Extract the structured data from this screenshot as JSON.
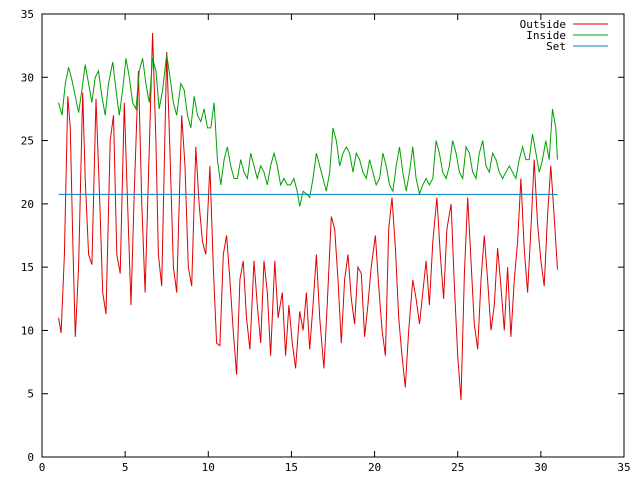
{
  "chart_data": {
    "type": "line",
    "title": "",
    "xlabel": "",
    "ylabel": "",
    "xlim": [
      0,
      35
    ],
    "ylim": [
      0,
      35
    ],
    "xticks": [
      0,
      5,
      10,
      15,
      20,
      25,
      30,
      35
    ],
    "yticks": [
      0,
      5,
      10,
      15,
      20,
      25,
      30,
      35
    ],
    "grid": false,
    "legend_position": "top-right",
    "series": [
      {
        "name": "Outside",
        "color": "#e00000",
        "points": [
          [
            1.0,
            11.0
          ],
          [
            1.15,
            9.8
          ],
          [
            1.35,
            16.0
          ],
          [
            1.55,
            28.5
          ],
          [
            1.7,
            26.0
          ],
          [
            1.85,
            17.0
          ],
          [
            2.0,
            9.5
          ],
          [
            2.2,
            15.0
          ],
          [
            2.45,
            28.8
          ],
          [
            2.6,
            22.0
          ],
          [
            2.8,
            16.0
          ],
          [
            3.0,
            15.2
          ],
          [
            3.25,
            28.3
          ],
          [
            3.45,
            21.0
          ],
          [
            3.65,
            13.0
          ],
          [
            3.85,
            11.3
          ],
          [
            4.1,
            25.0
          ],
          [
            4.3,
            27.0
          ],
          [
            4.5,
            16.0
          ],
          [
            4.7,
            14.5
          ],
          [
            4.95,
            28.0
          ],
          [
            5.15,
            20.0
          ],
          [
            5.35,
            12.0
          ],
          [
            5.55,
            21.0
          ],
          [
            5.8,
            30.5
          ],
          [
            6.0,
            20.0
          ],
          [
            6.2,
            13.0
          ],
          [
            6.4,
            22.0
          ],
          [
            6.65,
            33.5
          ],
          [
            6.85,
            25.0
          ],
          [
            7.0,
            16.0
          ],
          [
            7.2,
            13.5
          ],
          [
            7.5,
            32.0
          ],
          [
            7.7,
            24.0
          ],
          [
            7.9,
            15.0
          ],
          [
            8.1,
            13.0
          ],
          [
            8.4,
            27.0
          ],
          [
            8.6,
            23.0
          ],
          [
            8.8,
            15.0
          ],
          [
            9.0,
            13.5
          ],
          [
            9.25,
            24.5
          ],
          [
            9.45,
            20.0
          ],
          [
            9.65,
            17.0
          ],
          [
            9.85,
            16.0
          ],
          [
            10.1,
            23.0
          ],
          [
            10.3,
            15.0
          ],
          [
            10.5,
            9.0
          ],
          [
            10.7,
            8.8
          ],
          [
            10.9,
            16.0
          ],
          [
            11.1,
            17.5
          ],
          [
            11.3,
            14.0
          ],
          [
            11.5,
            10.0
          ],
          [
            11.7,
            6.5
          ],
          [
            11.9,
            14.0
          ],
          [
            12.1,
            15.5
          ],
          [
            12.3,
            11.0
          ],
          [
            12.5,
            8.5
          ],
          [
            12.75,
            15.5
          ],
          [
            12.95,
            12.0
          ],
          [
            13.15,
            9.0
          ],
          [
            13.35,
            15.5
          ],
          [
            13.55,
            13.0
          ],
          [
            13.75,
            8.0
          ],
          [
            14.0,
            15.5
          ],
          [
            14.2,
            11.0
          ],
          [
            14.45,
            13.0
          ],
          [
            14.65,
            8.0
          ],
          [
            14.85,
            12.0
          ],
          [
            15.05,
            9.0
          ],
          [
            15.25,
            7.0
          ],
          [
            15.5,
            11.5
          ],
          [
            15.7,
            10.0
          ],
          [
            15.9,
            13.0
          ],
          [
            16.1,
            8.5
          ],
          [
            16.3,
            12.0
          ],
          [
            16.5,
            16.0
          ],
          [
            16.7,
            11.0
          ],
          [
            16.95,
            7.0
          ],
          [
            17.15,
            12.0
          ],
          [
            17.4,
            19.0
          ],
          [
            17.6,
            18.0
          ],
          [
            17.8,
            14.0
          ],
          [
            18.0,
            9.0
          ],
          [
            18.2,
            14.0
          ],
          [
            18.4,
            16.0
          ],
          [
            18.6,
            12.5
          ],
          [
            18.8,
            10.5
          ],
          [
            19.0,
            15.0
          ],
          [
            19.2,
            14.5
          ],
          [
            19.4,
            9.5
          ],
          [
            19.6,
            12.0
          ],
          [
            19.8,
            15.0
          ],
          [
            20.05,
            17.5
          ],
          [
            20.25,
            13.5
          ],
          [
            20.45,
            10.0
          ],
          [
            20.65,
            8.0
          ],
          [
            20.85,
            18.0
          ],
          [
            21.05,
            20.5
          ],
          [
            21.25,
            16.5
          ],
          [
            21.45,
            11.0
          ],
          [
            21.65,
            8.0
          ],
          [
            21.85,
            5.5
          ],
          [
            22.05,
            10.0
          ],
          [
            22.3,
            14.0
          ],
          [
            22.5,
            12.5
          ],
          [
            22.7,
            10.5
          ],
          [
            22.9,
            13.0
          ],
          [
            23.1,
            15.5
          ],
          [
            23.3,
            12.0
          ],
          [
            23.5,
            17.0
          ],
          [
            23.75,
            20.5
          ],
          [
            23.95,
            16.0
          ],
          [
            24.15,
            12.5
          ],
          [
            24.35,
            18.0
          ],
          [
            24.6,
            20.0
          ],
          [
            24.8,
            13.5
          ],
          [
            25.0,
            8.0
          ],
          [
            25.2,
            4.5
          ],
          [
            25.4,
            14.5
          ],
          [
            25.6,
            20.5
          ],
          [
            25.8,
            15.5
          ],
          [
            26.0,
            10.5
          ],
          [
            26.2,
            8.5
          ],
          [
            26.4,
            14.0
          ],
          [
            26.6,
            17.5
          ],
          [
            26.8,
            14.0
          ],
          [
            27.0,
            10.0
          ],
          [
            27.2,
            12.0
          ],
          [
            27.4,
            16.5
          ],
          [
            27.6,
            13.5
          ],
          [
            27.8,
            10.0
          ],
          [
            28.0,
            15.0
          ],
          [
            28.2,
            9.5
          ],
          [
            28.4,
            14.0
          ],
          [
            28.6,
            17.0
          ],
          [
            28.8,
            22.0
          ],
          [
            29.0,
            16.5
          ],
          [
            29.2,
            13.0
          ],
          [
            29.4,
            18.0
          ],
          [
            29.6,
            23.5
          ],
          [
            29.8,
            18.5
          ],
          [
            30.0,
            15.5
          ],
          [
            30.2,
            13.5
          ],
          [
            30.4,
            19.0
          ],
          [
            30.6,
            23.0
          ],
          [
            30.8,
            19.0
          ],
          [
            31.0,
            14.8
          ]
        ]
      },
      {
        "name": "Inside",
        "color": "#00a000",
        "points": [
          [
            1.0,
            28.0
          ],
          [
            1.2,
            27.0
          ],
          [
            1.4,
            29.5
          ],
          [
            1.6,
            30.8
          ],
          [
            1.8,
            29.8
          ],
          [
            2.0,
            28.5
          ],
          [
            2.2,
            27.2
          ],
          [
            2.4,
            29.0
          ],
          [
            2.6,
            31.0
          ],
          [
            2.8,
            29.5
          ],
          [
            3.0,
            28.0
          ],
          [
            3.2,
            30.0
          ],
          [
            3.4,
            30.5
          ],
          [
            3.6,
            28.5
          ],
          [
            3.8,
            27.0
          ],
          [
            4.0,
            29.5
          ],
          [
            4.25,
            31.2
          ],
          [
            4.45,
            29.0
          ],
          [
            4.65,
            27.0
          ],
          [
            4.85,
            29.0
          ],
          [
            5.05,
            31.5
          ],
          [
            5.25,
            30.0
          ],
          [
            5.45,
            28.0
          ],
          [
            5.65,
            27.5
          ],
          [
            5.85,
            30.5
          ],
          [
            6.05,
            31.5
          ],
          [
            6.25,
            29.5
          ],
          [
            6.45,
            28.0
          ],
          [
            6.65,
            31.5
          ],
          [
            6.85,
            30.5
          ],
          [
            7.05,
            27.5
          ],
          [
            7.25,
            29.0
          ],
          [
            7.5,
            31.8
          ],
          [
            7.7,
            30.0
          ],
          [
            7.9,
            28.0
          ],
          [
            8.1,
            27.0
          ],
          [
            8.35,
            29.5
          ],
          [
            8.55,
            29.0
          ],
          [
            8.75,
            27.0
          ],
          [
            8.95,
            26.0
          ],
          [
            9.15,
            28.5
          ],
          [
            9.35,
            27.0
          ],
          [
            9.55,
            26.5
          ],
          [
            9.75,
            27.5
          ],
          [
            9.95,
            26.0
          ],
          [
            10.15,
            26.0
          ],
          [
            10.35,
            28.0
          ],
          [
            10.55,
            23.5
          ],
          [
            10.75,
            21.5
          ],
          [
            10.95,
            23.5
          ],
          [
            11.15,
            24.5
          ],
          [
            11.35,
            23.0
          ],
          [
            11.55,
            22.0
          ],
          [
            11.75,
            22.0
          ],
          [
            11.95,
            23.5
          ],
          [
            12.15,
            22.5
          ],
          [
            12.35,
            22.0
          ],
          [
            12.55,
            24.0
          ],
          [
            12.75,
            23.0
          ],
          [
            12.95,
            22.0
          ],
          [
            13.15,
            23.0
          ],
          [
            13.35,
            22.5
          ],
          [
            13.55,
            21.5
          ],
          [
            13.75,
            23.0
          ],
          [
            13.95,
            24.0
          ],
          [
            14.15,
            23.0
          ],
          [
            14.35,
            21.5
          ],
          [
            14.55,
            22.0
          ],
          [
            14.75,
            21.5
          ],
          [
            14.95,
            21.5
          ],
          [
            15.15,
            22.0
          ],
          [
            15.35,
            21.0
          ],
          [
            15.5,
            19.8
          ],
          [
            15.7,
            21.0
          ],
          [
            15.9,
            20.8
          ],
          [
            16.1,
            20.5
          ],
          [
            16.3,
            22.0
          ],
          [
            16.5,
            24.0
          ],
          [
            16.7,
            23.0
          ],
          [
            16.9,
            22.0
          ],
          [
            17.1,
            21.0
          ],
          [
            17.3,
            22.5
          ],
          [
            17.5,
            26.0
          ],
          [
            17.7,
            25.0
          ],
          [
            17.9,
            23.0
          ],
          [
            18.1,
            24.0
          ],
          [
            18.3,
            24.5
          ],
          [
            18.5,
            24.0
          ],
          [
            18.7,
            22.5
          ],
          [
            18.9,
            24.0
          ],
          [
            19.1,
            23.5
          ],
          [
            19.3,
            22.5
          ],
          [
            19.5,
            22.0
          ],
          [
            19.7,
            23.5
          ],
          [
            19.9,
            22.5
          ],
          [
            20.1,
            21.5
          ],
          [
            20.3,
            22.0
          ],
          [
            20.5,
            24.0
          ],
          [
            20.7,
            23.0
          ],
          [
            20.9,
            21.5
          ],
          [
            21.1,
            21.0
          ],
          [
            21.3,
            23.0
          ],
          [
            21.5,
            24.5
          ],
          [
            21.7,
            22.5
          ],
          [
            21.9,
            21.0
          ],
          [
            22.1,
            22.5
          ],
          [
            22.3,
            24.5
          ],
          [
            22.5,
            22.0
          ],
          [
            22.7,
            20.8
          ],
          [
            22.9,
            21.5
          ],
          [
            23.1,
            22.0
          ],
          [
            23.3,
            21.5
          ],
          [
            23.5,
            22.0
          ],
          [
            23.7,
            25.0
          ],
          [
            23.9,
            24.0
          ],
          [
            24.1,
            22.5
          ],
          [
            24.3,
            22.0
          ],
          [
            24.5,
            23.0
          ],
          [
            24.7,
            25.0
          ],
          [
            24.9,
            24.0
          ],
          [
            25.1,
            22.5
          ],
          [
            25.3,
            22.0
          ],
          [
            25.5,
            24.5
          ],
          [
            25.7,
            24.0
          ],
          [
            25.9,
            22.5
          ],
          [
            26.1,
            22.0
          ],
          [
            26.3,
            24.0
          ],
          [
            26.5,
            25.0
          ],
          [
            26.7,
            23.0
          ],
          [
            26.9,
            22.5
          ],
          [
            27.1,
            24.0
          ],
          [
            27.3,
            23.5
          ],
          [
            27.5,
            22.5
          ],
          [
            27.7,
            22.0
          ],
          [
            27.9,
            22.5
          ],
          [
            28.1,
            23.0
          ],
          [
            28.3,
            22.5
          ],
          [
            28.5,
            22.0
          ],
          [
            28.7,
            23.5
          ],
          [
            28.9,
            24.5
          ],
          [
            29.1,
            23.5
          ],
          [
            29.3,
            23.5
          ],
          [
            29.5,
            25.5
          ],
          [
            29.7,
            24.0
          ],
          [
            29.9,
            22.5
          ],
          [
            30.1,
            23.5
          ],
          [
            30.3,
            25.0
          ],
          [
            30.5,
            23.5
          ],
          [
            30.7,
            27.5
          ],
          [
            30.9,
            26.0
          ],
          [
            31.0,
            23.5
          ]
        ]
      },
      {
        "name": "Set",
        "color": "#0080c0",
        "points": [
          [
            1.0,
            20.75
          ],
          [
            31.0,
            20.75
          ]
        ]
      }
    ]
  }
}
